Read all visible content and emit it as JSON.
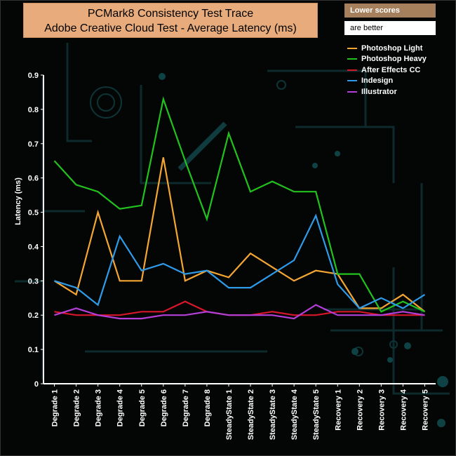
{
  "notes": {
    "line1": "Lower scores",
    "line2": "are better"
  },
  "colors": {
    "background": "#040606",
    "axis": "#ffffff",
    "title_box": "#e8ac7c"
  },
  "chart_data": {
    "type": "line",
    "title": "PCMark8 Consistency Test Trace",
    "subtitle": "Adobe Creative Cloud Test -  Average Latency (ms)",
    "ylabel": "Latency (ms)",
    "xlabel": "",
    "ylim": [
      0,
      0.9
    ],
    "yticks": [
      "0",
      "0.1",
      "0.2",
      "0.3",
      "0.4",
      "0.5",
      "0.6",
      "0.7",
      "0.8",
      "0.9"
    ],
    "legend_position": "top-right",
    "grid": false,
    "categories": [
      "Degrade 1",
      "Degrade 2",
      "Degrade 3",
      "Degrade 4",
      "Degrade 5",
      "Degrade 6",
      "Degrade 7",
      "Degrade 8",
      "SteadyState 1",
      "SteadyState 2",
      "SteadyState 3",
      "SteadyState 4",
      "SteadyState 5",
      "Recovery 1",
      "Recovery 2",
      "Recovery 3",
      "Recovery 4",
      "Recovery 5"
    ],
    "series": [
      {
        "name": "Photoshop Light",
        "color": "#f4a633",
        "values": [
          0.3,
          0.26,
          0.5,
          0.3,
          0.3,
          0.66,
          0.3,
          0.33,
          0.31,
          0.38,
          0.34,
          0.3,
          0.33,
          0.32,
          0.22,
          0.22,
          0.26,
          0.21
        ]
      },
      {
        "name": "Photoshop Heavy",
        "color": "#22c21e",
        "values": [
          0.65,
          0.58,
          0.56,
          0.51,
          0.52,
          0.83,
          0.65,
          0.48,
          0.73,
          0.56,
          0.59,
          0.56,
          0.56,
          0.32,
          0.32,
          0.21,
          0.24,
          0.21
        ]
      },
      {
        "name": "After Effects CC",
        "color": "#d8162a",
        "values": [
          0.21,
          0.2,
          0.2,
          0.2,
          0.21,
          0.21,
          0.24,
          0.21,
          0.2,
          0.2,
          0.21,
          0.2,
          0.2,
          0.21,
          0.21,
          0.2,
          0.2,
          0.2
        ]
      },
      {
        "name": "Indesign",
        "color": "#2f9be8",
        "values": [
          0.3,
          0.28,
          0.23,
          0.43,
          0.33,
          0.35,
          0.32,
          0.33,
          0.28,
          0.28,
          0.32,
          0.36,
          0.49,
          0.29,
          0.22,
          0.25,
          0.22,
          0.26
        ]
      },
      {
        "name": "Illustrator",
        "color": "#b43fd8",
        "values": [
          0.2,
          0.22,
          0.2,
          0.19,
          0.19,
          0.2,
          0.2,
          0.21,
          0.2,
          0.2,
          0.2,
          0.19,
          0.23,
          0.2,
          0.2,
          0.2,
          0.21,
          0.2
        ]
      }
    ]
  }
}
